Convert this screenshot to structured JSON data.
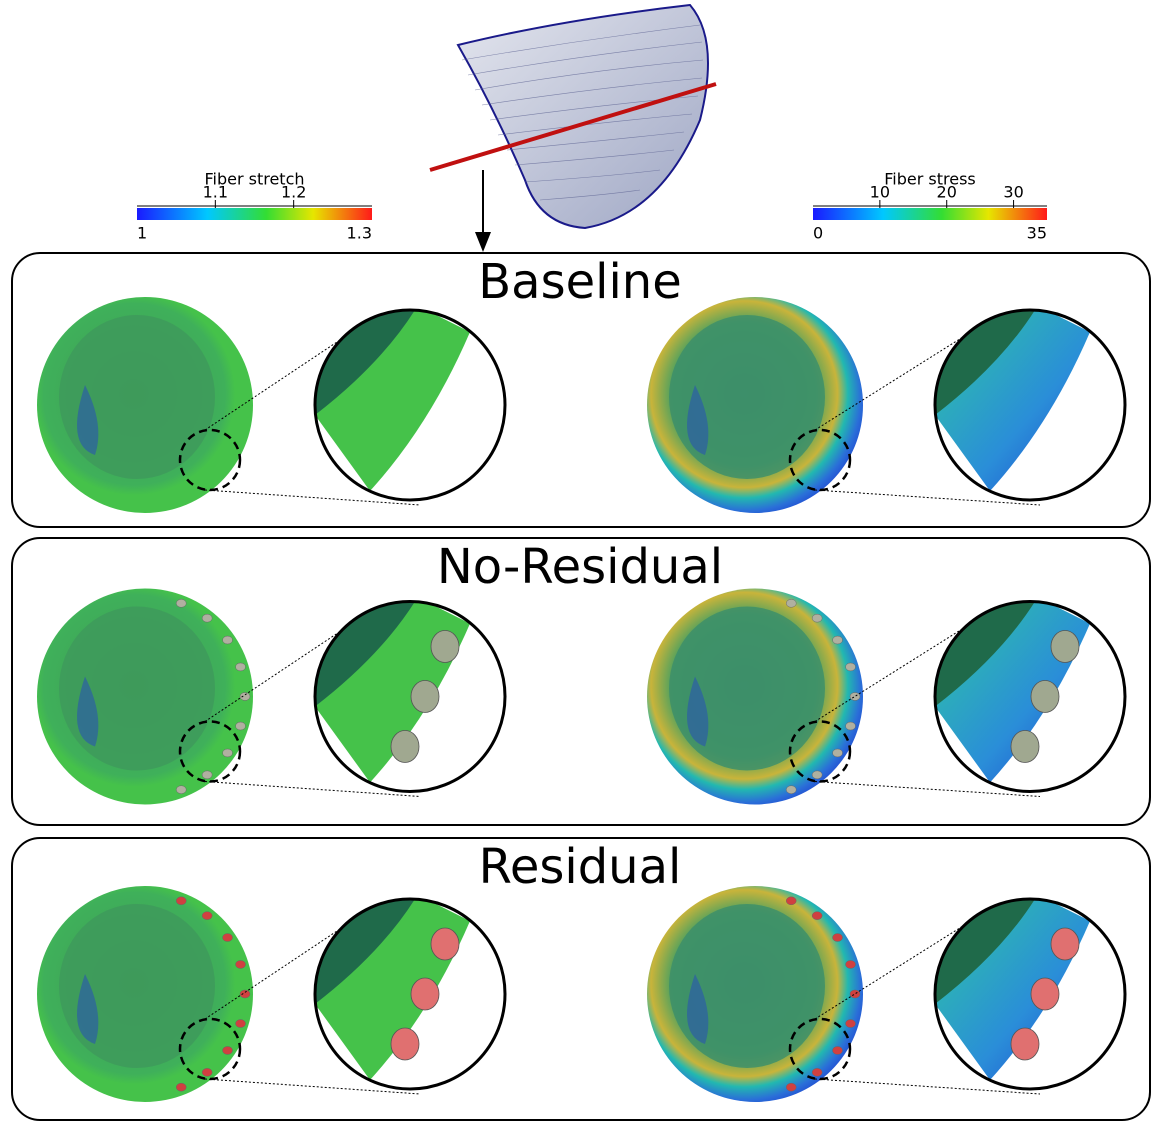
{
  "colorbars": [
    {
      "title": "Fiber stretch",
      "range": [
        1,
        1.3
      ],
      "upper_ticks": [
        1.1,
        1.2
      ],
      "lower_ticks": [
        1,
        1.3
      ]
    },
    {
      "title": "Fiber stress",
      "range": [
        0,
        35
      ],
      "upper_ticks": [
        10,
        20,
        30
      ],
      "lower_ticks": [
        0,
        35
      ]
    }
  ],
  "panels": [
    {
      "title": "Baseline"
    },
    {
      "title": "No-Residual"
    },
    {
      "title": "Residual"
    }
  ]
}
